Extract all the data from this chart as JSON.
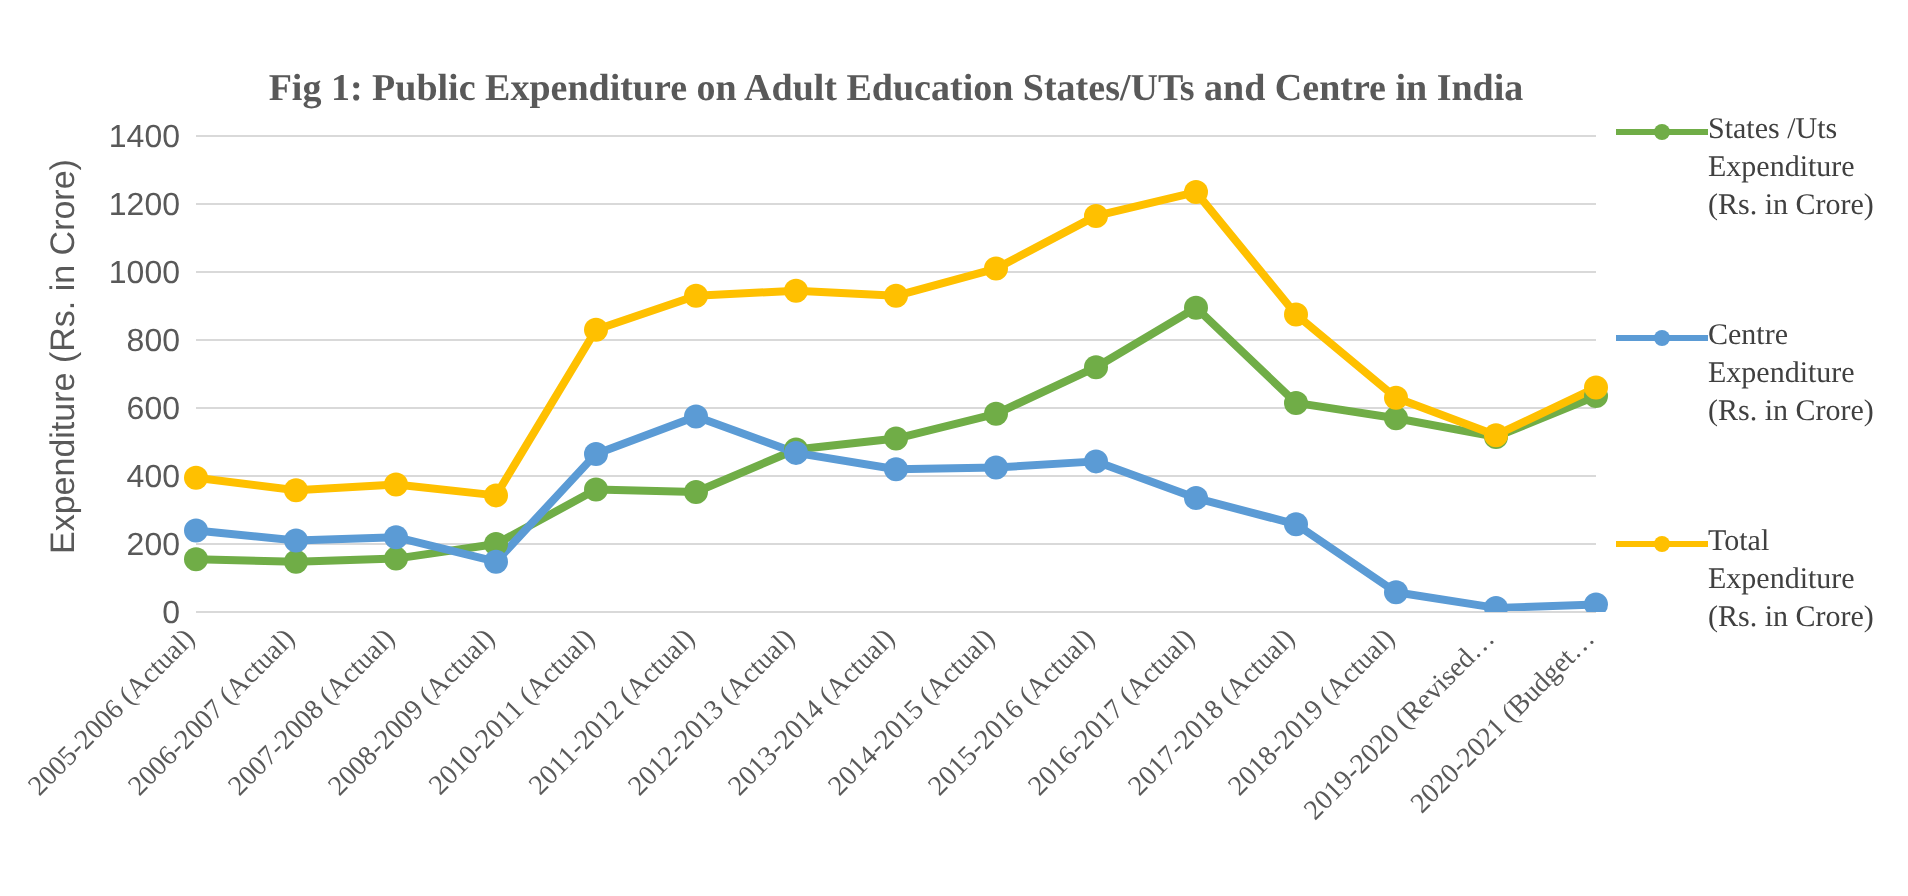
{
  "chart_data": {
    "type": "line",
    "title": "Fig 1: Public Expenditure on Adult Education States/UTs and Centre in India",
    "ylabel": "Expenditure (Rs. in Crore)",
    "categories": [
      "2005-2006 (Actual)",
      "2006-2007 (Actual)",
      "2007-2008 (Actual)",
      "2008-2009 (Actual)",
      "2010-2011 (Actual)",
      "2011-2012 (Actual)",
      "2012-2013 (Actual)",
      "2013-2014 (Actual)",
      "2014-2015 (Actual)",
      "2015-2016 (Actual)",
      "2016-2017 (Actual)",
      "2017-2018 (Actual)",
      "2018-2019 (Actual)",
      "2019-2020 (Revised…",
      "2020-2021 (Budget…"
    ],
    "series": [
      {
        "name": "States /Uts Expenditure (Rs. in Crore)",
        "color": "#70ad47",
        "values": [
          155,
          148,
          157,
          200,
          360,
          353,
          478,
          510,
          583,
          720,
          895,
          615,
          570,
          515,
          635
        ]
      },
      {
        "name": "Centre Expenditure (Rs. in Crore)",
        "color": "#5b9bd5",
        "values": [
          240,
          210,
          220,
          148,
          465,
          575,
          468,
          420,
          425,
          443,
          335,
          258,
          58,
          12,
          22
        ]
      },
      {
        "name": "Total Expenditure (Rs. in Crore)",
        "color": "#ffc000",
        "values": [
          395,
          358,
          375,
          343,
          830,
          930,
          945,
          930,
          1010,
          1165,
          1235,
          875,
          630,
          520,
          660
        ]
      }
    ],
    "ylim": [
      0,
      1400
    ],
    "yticks": [
      0,
      200,
      400,
      600,
      800,
      1000,
      1200,
      1400
    ],
    "grid": "y",
    "legend": "right",
    "marker": "circle",
    "line_style": "solid"
  }
}
